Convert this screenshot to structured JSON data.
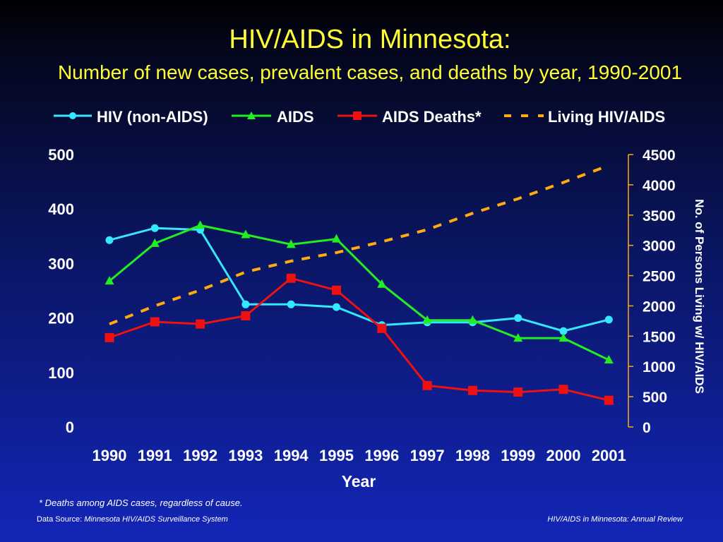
{
  "chart_data": {
    "type": "line",
    "title": "HIV/AIDS in Minnesota:",
    "subtitle": "Number of new cases, prevalent cases, and deaths by year, 1990-2001",
    "xlabel": "Year",
    "ylabel_right": "No. of Persons Living w/ HIV/AIDS",
    "categories": [
      "1990",
      "1991",
      "1992",
      "1993",
      "1994",
      "1995",
      "1996",
      "1997",
      "1998",
      "1999",
      "2000",
      "2001"
    ],
    "ylim_left": [
      0,
      500
    ],
    "ylim_right": [
      0,
      4500
    ],
    "yticks_left": [
      "0",
      "100",
      "200",
      "300",
      "400",
      "500"
    ],
    "yticks_right": [
      "0",
      "500",
      "1000",
      "1500",
      "2000",
      "2500",
      "3000",
      "3500",
      "4000",
      "4500"
    ],
    "legend_position": "top",
    "series": [
      {
        "name": "HIV (non-AIDS)",
        "axis": "left",
        "color": "#33e8ff",
        "marker": "circle",
        "style": "solid",
        "values": [
          343,
          365,
          362,
          225,
          225,
          220,
          187,
          192,
          192,
          200,
          176,
          197
        ]
      },
      {
        "name": "AIDS",
        "axis": "left",
        "color": "#22ee22",
        "marker": "triangle",
        "style": "solid",
        "values": [
          268,
          337,
          370,
          353,
          335,
          345,
          262,
          196,
          196,
          163,
          163,
          123
        ]
      },
      {
        "name": "AIDS Deaths*",
        "axis": "left",
        "color": "#ee1111",
        "marker": "square",
        "style": "solid",
        "values": [
          164,
          193,
          189,
          204,
          273,
          251,
          181,
          76,
          67,
          64,
          69,
          49
        ]
      },
      {
        "name": "Living HIV/AIDS",
        "axis": "right",
        "color": "#ffaa11",
        "marker": "none",
        "style": "dashed",
        "values": [
          1700,
          2000,
          2260,
          2560,
          2740,
          2880,
          3060,
          3260,
          3530,
          3770,
          4040,
          4320
        ]
      }
    ]
  },
  "footnote": "*  Deaths among AIDS cases, regardless of cause.",
  "source_label": "Data Source: ",
  "source_name": "Minnesota HIV/AIDS Surveillance System",
  "publication": "HIV/AIDS in Minnesota: Annual Review"
}
